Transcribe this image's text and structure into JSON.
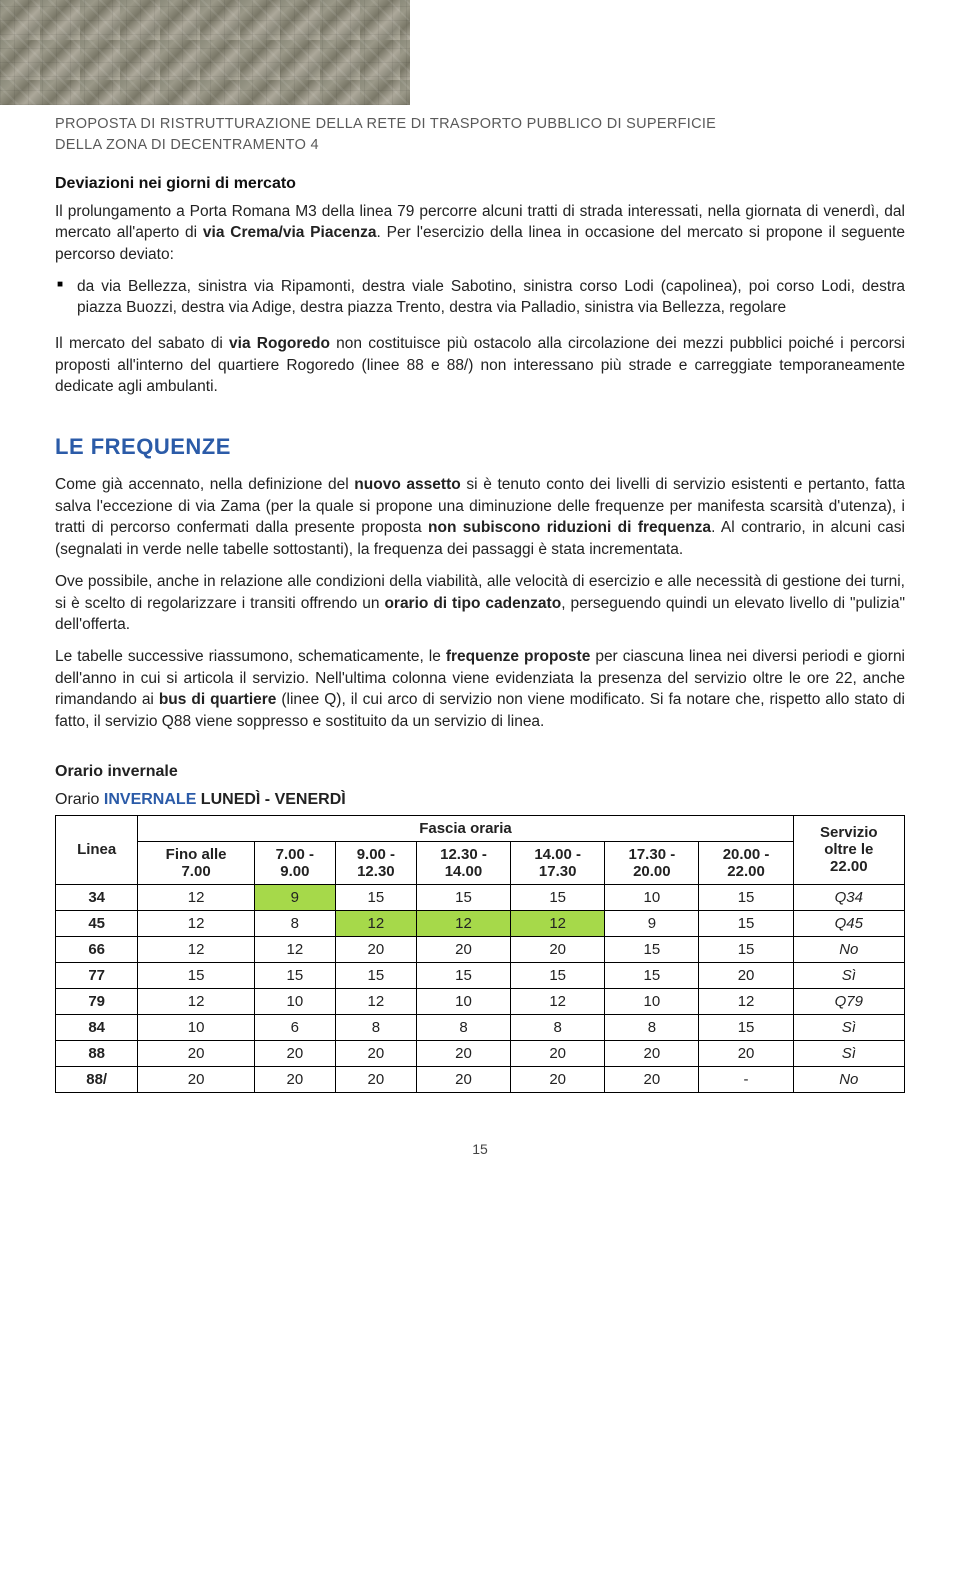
{
  "header": {
    "title_line1": "PROPOSTA DI RISTRUTTURAZIONE DELLA RETE DI TRASPORTO PUBBLICO DI SUPERFICIE",
    "title_line2": "DELLA ZONA DI DECENTRAMENTO 4"
  },
  "deviazioni": {
    "heading": "Deviazioni nei giorni di mercato",
    "p1_pre": "Il prolungamento a Porta Romana M3 della linea 79 percorre alcuni tratti di strada interessati, nella giornata di venerdì, dal mercato all'aperto di ",
    "p1_bold": "via Crema/via Piacenza",
    "p1_post": ". Per l'esercizio della linea in occasione del mercato si propone il seguente percorso deviato:",
    "bullet": "da via Bellezza, sinistra via Ripamonti, destra viale Sabotino, sinistra corso Lodi (capolinea), poi corso Lodi, destra piazza Buozzi, destra via Adige, destra piazza Trento, destra via Palladio, sinistra via Bellezza, regolare",
    "p2_pre": "Il mercato del sabato di ",
    "p2_bold": "via Rogoredo",
    "p2_post": " non costituisce più ostacolo alla circolazione dei mezzi pubblici poiché i percorsi proposti all'interno del quartiere Rogoredo (linee 88 e 88/) non interessano più strade e carreggiate temporaneamente dedicate agli ambulanti."
  },
  "freq": {
    "heading": "LE FREQUENZE",
    "p1_a": "Come già accennato, nella definizione del ",
    "p1_b": "nuovo assetto",
    "p1_c": " si è tenuto conto dei livelli di servizio esistenti e pertanto, fatta salva l'eccezione di via Zama (per la quale si propone una diminuzione delle frequenze per manifesta scarsità d'utenza), i tratti di percorso confermati dalla presente proposta ",
    "p1_d": "non subiscono riduzioni di frequenza",
    "p1_e": ". Al contrario, in alcuni casi (segnalati in verde nelle tabelle sottostanti), la frequenza dei passaggi è stata incrementata.",
    "p2_a": "Ove possibile, anche in relazione alle condizioni della viabilità, alle velocità di esercizio e alle necessità di gestione dei turni, si è scelto di regolarizzare i transiti offrendo un ",
    "p2_b": "orario di tipo cadenzato",
    "p2_c": ", perseguendo quindi un elevato livello di \"pulizia\" dell'offerta.",
    "p3_a": "Le tabelle successive riassumono, schematicamente, le ",
    "p3_b": "frequenze proposte",
    "p3_c": " per ciascuna linea nei diversi periodi e giorni dell'anno in cui si articola il servizio. Nell'ultima colonna viene evidenziata la presenza del servizio oltre le ore 22, anche rimandando ai ",
    "p3_d": "bus di quartiere",
    "p3_e": " (linee Q), il cui arco di servizio non viene modificato. Si fa notare che, rispetto allo stato di fatto, il servizio Q88 viene soppresso e sostituito da un servizio di linea."
  },
  "schedule": {
    "title": "Orario invernale",
    "label_pre": "Orario ",
    "label_season": "INVERNALE",
    "label_days": " LUNEDÌ - VENERDÌ",
    "col_linea": "Linea",
    "col_fascia": "Fascia oraria",
    "col_servizio_1": "Servizio",
    "col_servizio_2": "oltre le",
    "col_servizio_3": "22.00",
    "bands": [
      {
        "l1": "Fino alle",
        "l2": "7.00"
      },
      {
        "l1": "7.00 -",
        "l2": "9.00"
      },
      {
        "l1": "9.00 -",
        "l2": "12.30"
      },
      {
        "l1": "12.30 -",
        "l2": "14.00"
      },
      {
        "l1": "14.00 -",
        "l2": "17.30"
      },
      {
        "l1": "17.30 -",
        "l2": "20.00"
      },
      {
        "l1": "20.00 -",
        "l2": "22.00"
      }
    ],
    "highlight_color": "#a6d94a",
    "rows": [
      {
        "line": "34",
        "v": [
          "12",
          "9",
          "15",
          "15",
          "15",
          "10",
          "15"
        ],
        "hl": [
          false,
          true,
          false,
          false,
          false,
          false,
          false
        ],
        "svc": "Q34"
      },
      {
        "line": "45",
        "v": [
          "12",
          "8",
          "12",
          "12",
          "12",
          "9",
          "15"
        ],
        "hl": [
          false,
          false,
          true,
          true,
          true,
          false,
          false
        ],
        "svc": "Q45"
      },
      {
        "line": "66",
        "v": [
          "12",
          "12",
          "20",
          "20",
          "20",
          "15",
          "15"
        ],
        "hl": [
          false,
          false,
          false,
          false,
          false,
          false,
          false
        ],
        "svc": "No"
      },
      {
        "line": "77",
        "v": [
          "15",
          "15",
          "15",
          "15",
          "15",
          "15",
          "20"
        ],
        "hl": [
          false,
          false,
          false,
          false,
          false,
          false,
          false
        ],
        "svc": "Sì"
      },
      {
        "line": "79",
        "v": [
          "12",
          "10",
          "12",
          "10",
          "12",
          "10",
          "12"
        ],
        "hl": [
          false,
          false,
          false,
          false,
          false,
          false,
          false
        ],
        "svc": "Q79"
      },
      {
        "line": "84",
        "v": [
          "10",
          "6",
          "8",
          "8",
          "8",
          "8",
          "15"
        ],
        "hl": [
          false,
          false,
          false,
          false,
          false,
          false,
          false
        ],
        "svc": "Sì"
      },
      {
        "line": "88",
        "v": [
          "20",
          "20",
          "20",
          "20",
          "20",
          "20",
          "20"
        ],
        "hl": [
          false,
          false,
          false,
          false,
          false,
          false,
          false
        ],
        "svc": "Sì"
      },
      {
        "line": "88/",
        "v": [
          "20",
          "20",
          "20",
          "20",
          "20",
          "20",
          "-"
        ],
        "hl": [
          false,
          false,
          false,
          false,
          false,
          false,
          false
        ],
        "svc": "No"
      }
    ]
  },
  "page_number": "15"
}
